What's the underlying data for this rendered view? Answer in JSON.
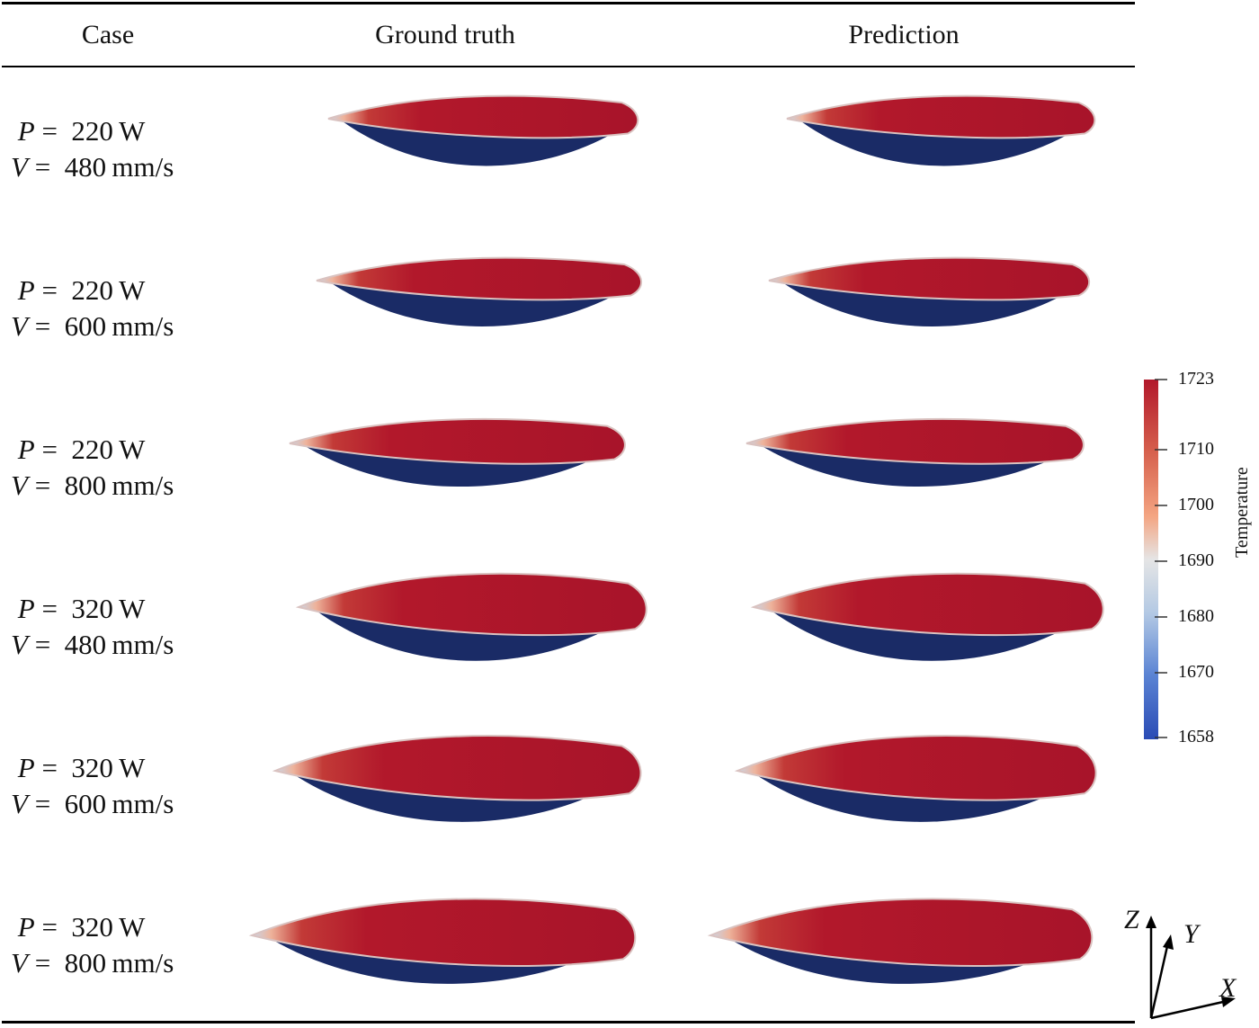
{
  "table": {
    "headers": [
      "Case",
      "Ground truth",
      "Prediction"
    ],
    "rows": [
      {
        "p_value": "220",
        "p_unit": "W",
        "v_value": "480",
        "v_unit": "mm/s"
      },
      {
        "p_value": "220",
        "p_unit": "W",
        "v_value": "600",
        "v_unit": "mm/s"
      },
      {
        "p_value": "220",
        "p_unit": "W",
        "v_value": "800",
        "v_unit": "mm/s"
      },
      {
        "p_value": "320",
        "p_unit": "W",
        "v_value": "480",
        "v_unit": "mm/s"
      },
      {
        "p_value": "320",
        "p_unit": "W",
        "v_value": "600",
        "v_unit": "mm/s"
      },
      {
        "p_value": "320",
        "p_unit": "W",
        "v_value": "800",
        "v_unit": "mm/s"
      }
    ],
    "p_symbol": "P",
    "v_symbol": "V",
    "equals": "="
  },
  "colorbar": {
    "title": "Temperature",
    "ticks": [
      "1723",
      "1710",
      "1700",
      "1690",
      "1680",
      "1670",
      "1658"
    ],
    "colors": {
      "hot": "#b2182b",
      "warm": "#f4a582",
      "neutral": "#dddddd",
      "cool": "#92c5de",
      "cold": "#2c4fb8",
      "base": "#1a2b66"
    }
  },
  "axes": {
    "z": "Z",
    "y": "Y",
    "x": "X"
  }
}
